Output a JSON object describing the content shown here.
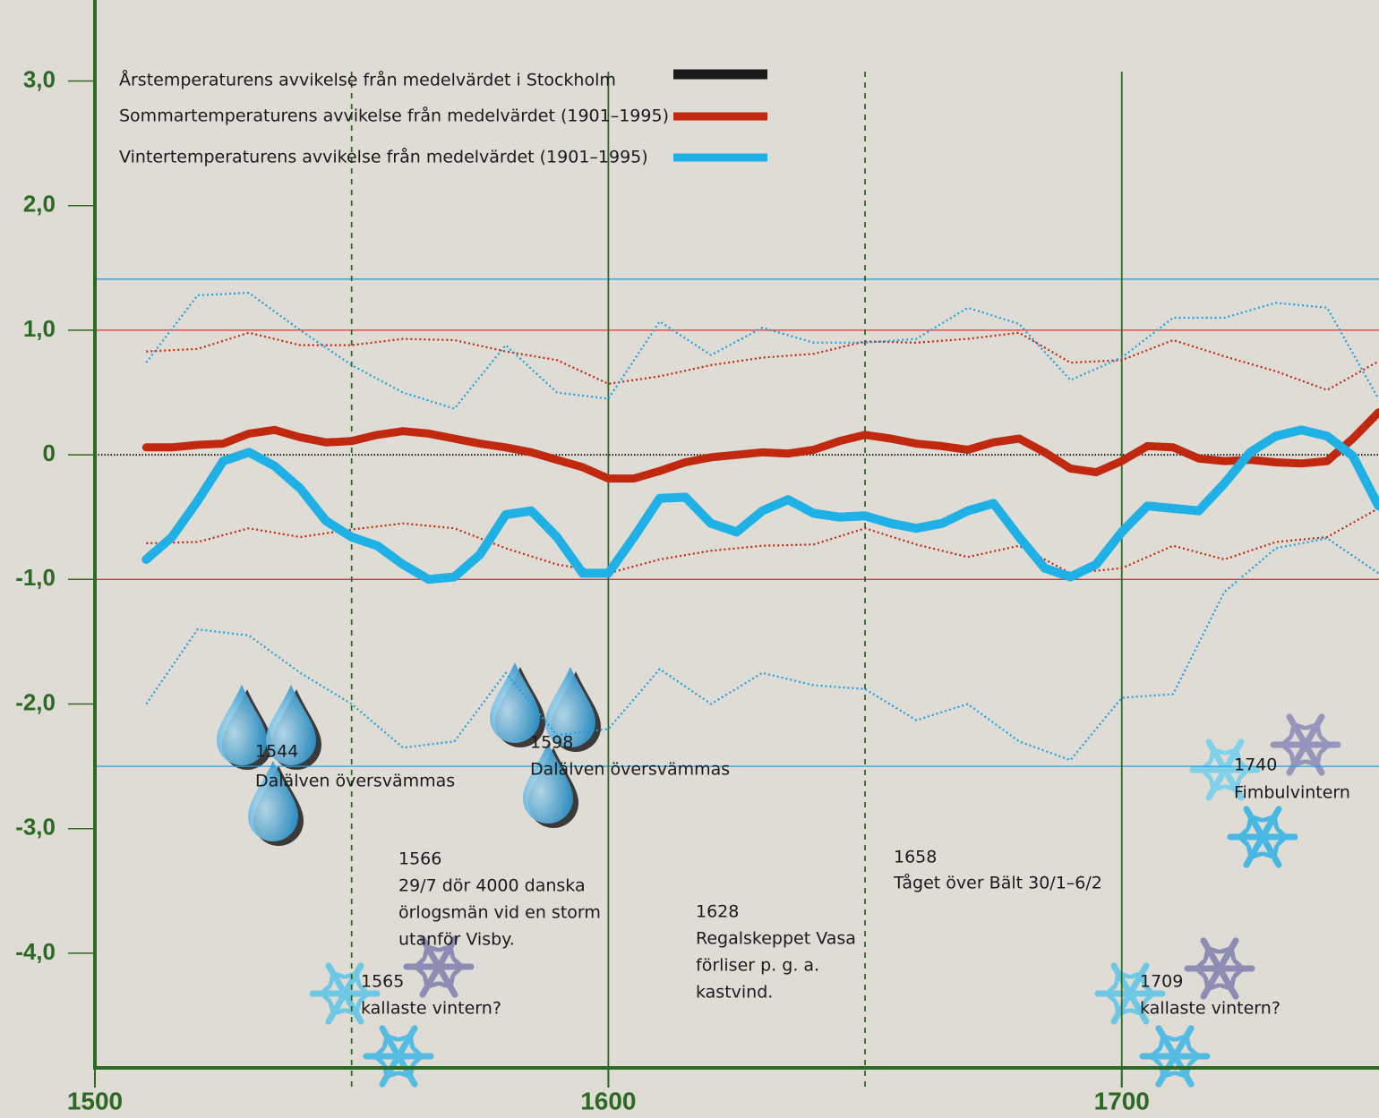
{
  "chart_data": {
    "type": "line",
    "xlim": [
      1500,
      1750.1
    ],
    "ylim": [
      -4.92,
      3.65
    ],
    "xticks": [
      1500,
      1600,
      1700
    ],
    "yticks": [
      {
        "value": 3,
        "label": "3,0"
      },
      {
        "value": 2,
        "label": "2,0"
      },
      {
        "value": 1,
        "label": "1,0"
      },
      0,
      {
        "value": -1,
        "label": "-1,0"
      },
      {
        "value": -2,
        "label": "-2,0"
      },
      {
        "value": -3,
        "label": "-3,0"
      },
      {
        "value": -4,
        "label": "-4,0"
      }
    ],
    "reference_lines": [
      {
        "value": 1.41,
        "color": "#2a9fe0"
      },
      {
        "value": 1,
        "color": "#e8302a"
      },
      {
        "value": 0,
        "color": "#222222",
        "style": "dotted"
      },
      {
        "value": -1,
        "color": "#e8302a"
      },
      {
        "value": -2.5,
        "color": "#2a9fe0"
      }
    ],
    "vertical_lines": [
      {
        "value": 1550,
        "style": "dashed"
      },
      {
        "value": 1600,
        "style": "solid"
      },
      {
        "value": 1650,
        "style": "dashed"
      },
      {
        "value": 1700,
        "style": "solid"
      }
    ],
    "legend": [
      {
        "name": "Årstemperaturens avvikelse från medelvärdet i Stockholm",
        "color": "#1a1a1a"
      },
      {
        "name": "Sommartemperaturens avvikelse från medelvärdet (1901–1995)",
        "color": "#c0280f"
      },
      {
        "name": "Vintertemperaturens avvikelse från medelvärdet (1901–1995)",
        "color": "#1fb0e6"
      }
    ],
    "series": [
      {
        "color": "#c0280f",
        "style": "dotted",
        "x": [
          1510,
          1520,
          1530,
          1540,
          1550,
          1560,
          1570,
          1580,
          1590,
          1600,
          1610,
          1620,
          1630,
          1640,
          1650,
          1660,
          1670,
          1680,
          1690,
          1700,
          1710,
          1720,
          1730,
          1740,
          1750
        ],
        "values": [
          0.83,
          0.85,
          0.98,
          0.88,
          0.88,
          0.93,
          0.92,
          0.83,
          0.76,
          0.57,
          0.63,
          0.72,
          0.78,
          0.81,
          0.91,
          0.9,
          0.93,
          0.98,
          0.74,
          0.76,
          0.92,
          0.79,
          0.67,
          0.52,
          0.75
        ]
      },
      {
        "color": "#c0280f",
        "style": "dotted",
        "x": [
          1510,
          1520,
          1530,
          1540,
          1550,
          1560,
          1570,
          1580,
          1590,
          1600,
          1610,
          1620,
          1630,
          1640,
          1650,
          1660,
          1670,
          1680,
          1690,
          1700,
          1710,
          1720,
          1730,
          1740,
          1750
        ],
        "values": [
          -0.71,
          -0.7,
          -0.59,
          -0.66,
          -0.6,
          -0.55,
          -0.59,
          -0.75,
          -0.88,
          -0.95,
          -0.84,
          -0.77,
          -0.73,
          -0.72,
          -0.59,
          -0.72,
          -0.82,
          -0.73,
          -0.95,
          -0.91,
          -0.73,
          -0.84,
          -0.7,
          -0.66,
          -0.43
        ]
      },
      {
        "color": "#1fa0e0",
        "style": "dotted",
        "x": [
          1510,
          1520,
          1530,
          1540,
          1550,
          1560,
          1570,
          1580,
          1590,
          1600,
          1610,
          1620,
          1630,
          1640,
          1650,
          1660,
          1670,
          1680,
          1690,
          1700,
          1710,
          1720,
          1730,
          1740,
          1750
        ],
        "values": [
          0.74,
          1.28,
          1.3,
          1.0,
          0.72,
          0.5,
          0.37,
          0.88,
          0.5,
          0.45,
          1.07,
          0.8,
          1.02,
          0.9,
          0.9,
          0.93,
          1.18,
          1.05,
          0.6,
          0.78,
          1.1,
          1.1,
          1.22,
          1.18,
          0.45
        ]
      },
      {
        "color": "#1fa0e0",
        "style": "dotted",
        "x": [
          1510,
          1520,
          1530,
          1540,
          1550,
          1560,
          1570,
          1580,
          1590,
          1600,
          1610,
          1620,
          1630,
          1640,
          1650,
          1660,
          1670,
          1680,
          1690,
          1700,
          1710,
          1720,
          1730,
          1740,
          1750
        ],
        "values": [
          -2.0,
          -1.4,
          -1.45,
          -1.75,
          -2.0,
          -2.35,
          -2.3,
          -1.75,
          -2.25,
          -2.2,
          -1.72,
          -2.0,
          -1.75,
          -1.85,
          -1.88,
          -2.13,
          -2.0,
          -2.3,
          -2.45,
          -1.95,
          -1.92,
          -1.1,
          -0.75,
          -0.67,
          -0.95
        ]
      },
      {
        "color": "#c0280f",
        "style": "solid",
        "x": [
          1510,
          1515,
          1520,
          1525,
          1530,
          1535,
          1540,
          1545,
          1550,
          1555,
          1560,
          1565,
          1570,
          1575,
          1580,
          1585,
          1590,
          1595,
          1600,
          1605,
          1610,
          1615,
          1620,
          1625,
          1630,
          1635,
          1640,
          1645,
          1650,
          1655,
          1660,
          1665,
          1670,
          1675,
          1680,
          1685,
          1690,
          1695,
          1700,
          1705,
          1710,
          1715,
          1720,
          1725,
          1730,
          1735,
          1740,
          1745,
          1750
        ],
        "values": [
          0.06,
          0.06,
          0.08,
          0.09,
          0.17,
          0.2,
          0.14,
          0.1,
          0.11,
          0.16,
          0.19,
          0.17,
          0.13,
          0.09,
          0.06,
          0.02,
          -0.04,
          -0.1,
          -0.19,
          -0.19,
          -0.13,
          -0.06,
          -0.02,
          0.0,
          0.02,
          0.01,
          0.04,
          0.11,
          0.16,
          0.13,
          0.09,
          0.07,
          0.04,
          0.1,
          0.13,
          0.02,
          -0.11,
          -0.14,
          -0.05,
          0.07,
          0.06,
          -0.03,
          -0.05,
          -0.04,
          -0.06,
          -0.07,
          -0.05,
          0.13,
          0.34
        ]
      },
      {
        "color": "#1fb0e6",
        "style": "solid",
        "x": [
          1510,
          1515,
          1520,
          1525,
          1530,
          1535,
          1540,
          1545,
          1550,
          1555,
          1560,
          1565,
          1570,
          1575,
          1580,
          1585,
          1590,
          1595,
          1600,
          1605,
          1610,
          1615,
          1620,
          1625,
          1630,
          1635,
          1640,
          1645,
          1650,
          1655,
          1660,
          1665,
          1670,
          1675,
          1680,
          1685,
          1690,
          1695,
          1700,
          1705,
          1710,
          1715,
          1720,
          1725,
          1730,
          1735,
          1740,
          1745,
          1750
        ],
        "values": [
          -0.84,
          -0.66,
          -0.37,
          -0.05,
          0.02,
          -0.09,
          -0.27,
          -0.53,
          -0.66,
          -0.73,
          -0.88,
          -1.0,
          -0.98,
          -0.8,
          -0.48,
          -0.45,
          -0.66,
          -0.95,
          -0.95,
          -0.66,
          -0.35,
          -0.34,
          -0.55,
          -0.62,
          -0.45,
          -0.36,
          -0.47,
          -0.5,
          -0.49,
          -0.55,
          -0.59,
          -0.55,
          -0.45,
          -0.39,
          -0.66,
          -0.91,
          -0.98,
          -0.88,
          -0.62,
          -0.41,
          -0.43,
          -0.45,
          -0.23,
          0.02,
          0.15,
          0.2,
          0.15,
          -0.01,
          -0.41
        ]
      }
    ],
    "annotations": [
      {
        "lines": [
          "1544",
          "Dalälven översvämmas"
        ]
      },
      {
        "lines": [
          "1598",
          "Dalälven översvämmas"
        ]
      },
      {
        "lines": [
          "1566",
          "29/7 dör 4000 danska",
          "örlogsmän vid en storm",
          "utanför Visby."
        ]
      },
      {
        "lines": [
          "1565",
          "kallaste vintern?"
        ]
      },
      {
        "lines": [
          "1628",
          "Regalskeppet Vasa",
          "förliser p. g. a.",
          "kastvind."
        ]
      },
      {
        "lines": [
          "1658",
          "Tåget över Bält  30/1–6/2"
        ]
      },
      {
        "lines": [
          "1709",
          "kallaste vintern?"
        ]
      },
      {
        "lines": [
          "1740",
          "Fimbulvintern"
        ]
      }
    ]
  }
}
